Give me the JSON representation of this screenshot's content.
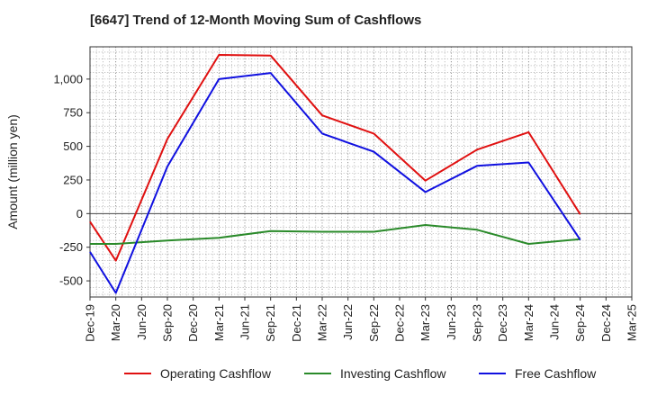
{
  "chart_data": {
    "type": "line",
    "title": "[6647]  Trend of 12-Month Moving Sum of Cashflows",
    "ylabel": "Amount (million yen)",
    "xlabel": "",
    "categories": [
      "Dec-19",
      "Mar-20",
      "Jun-20",
      "Sep-20",
      "Dec-20",
      "Mar-21",
      "Jun-21",
      "Sep-21",
      "Dec-21",
      "Mar-22",
      "Jun-22",
      "Sep-22",
      "Dec-22",
      "Mar-23",
      "Jun-23",
      "Sep-23",
      "Dec-23",
      "Mar-24",
      "Jun-24",
      "Sep-24",
      "Dec-24",
      "Mar-25"
    ],
    "y_ticks": [
      -500,
      -250,
      0,
      250,
      500,
      750,
      1000
    ],
    "y_tick_labels": [
      "-500",
      "-250",
      "0",
      "250",
      "500",
      "750",
      "1,000"
    ],
    "ylim": [
      -620,
      1240
    ],
    "grid": true,
    "legend_position": "bottom",
    "series": [
      {
        "name": "Operating Cashflow",
        "color": "#e01010",
        "values": [
          -60,
          -350,
          null,
          555,
          null,
          1180,
          null,
          1175,
          null,
          730,
          null,
          595,
          null,
          245,
          null,
          475,
          null,
          605,
          null,
          -5,
          null,
          null
        ]
      },
      {
        "name": "Investing Cashflow",
        "color": "#2a8a2a",
        "values": [
          -225,
          -225,
          null,
          -200,
          null,
          -180,
          null,
          -130,
          null,
          -135,
          null,
          -135,
          null,
          -85,
          null,
          -120,
          null,
          -225,
          null,
          -190,
          null,
          null
        ]
      },
      {
        "name": "Free Cashflow",
        "color": "#1010e0",
        "values": [
          -285,
          -590,
          null,
          350,
          null,
          1000,
          null,
          1045,
          null,
          595,
          null,
          460,
          null,
          160,
          null,
          355,
          null,
          380,
          null,
          -195,
          null,
          null
        ]
      }
    ]
  }
}
